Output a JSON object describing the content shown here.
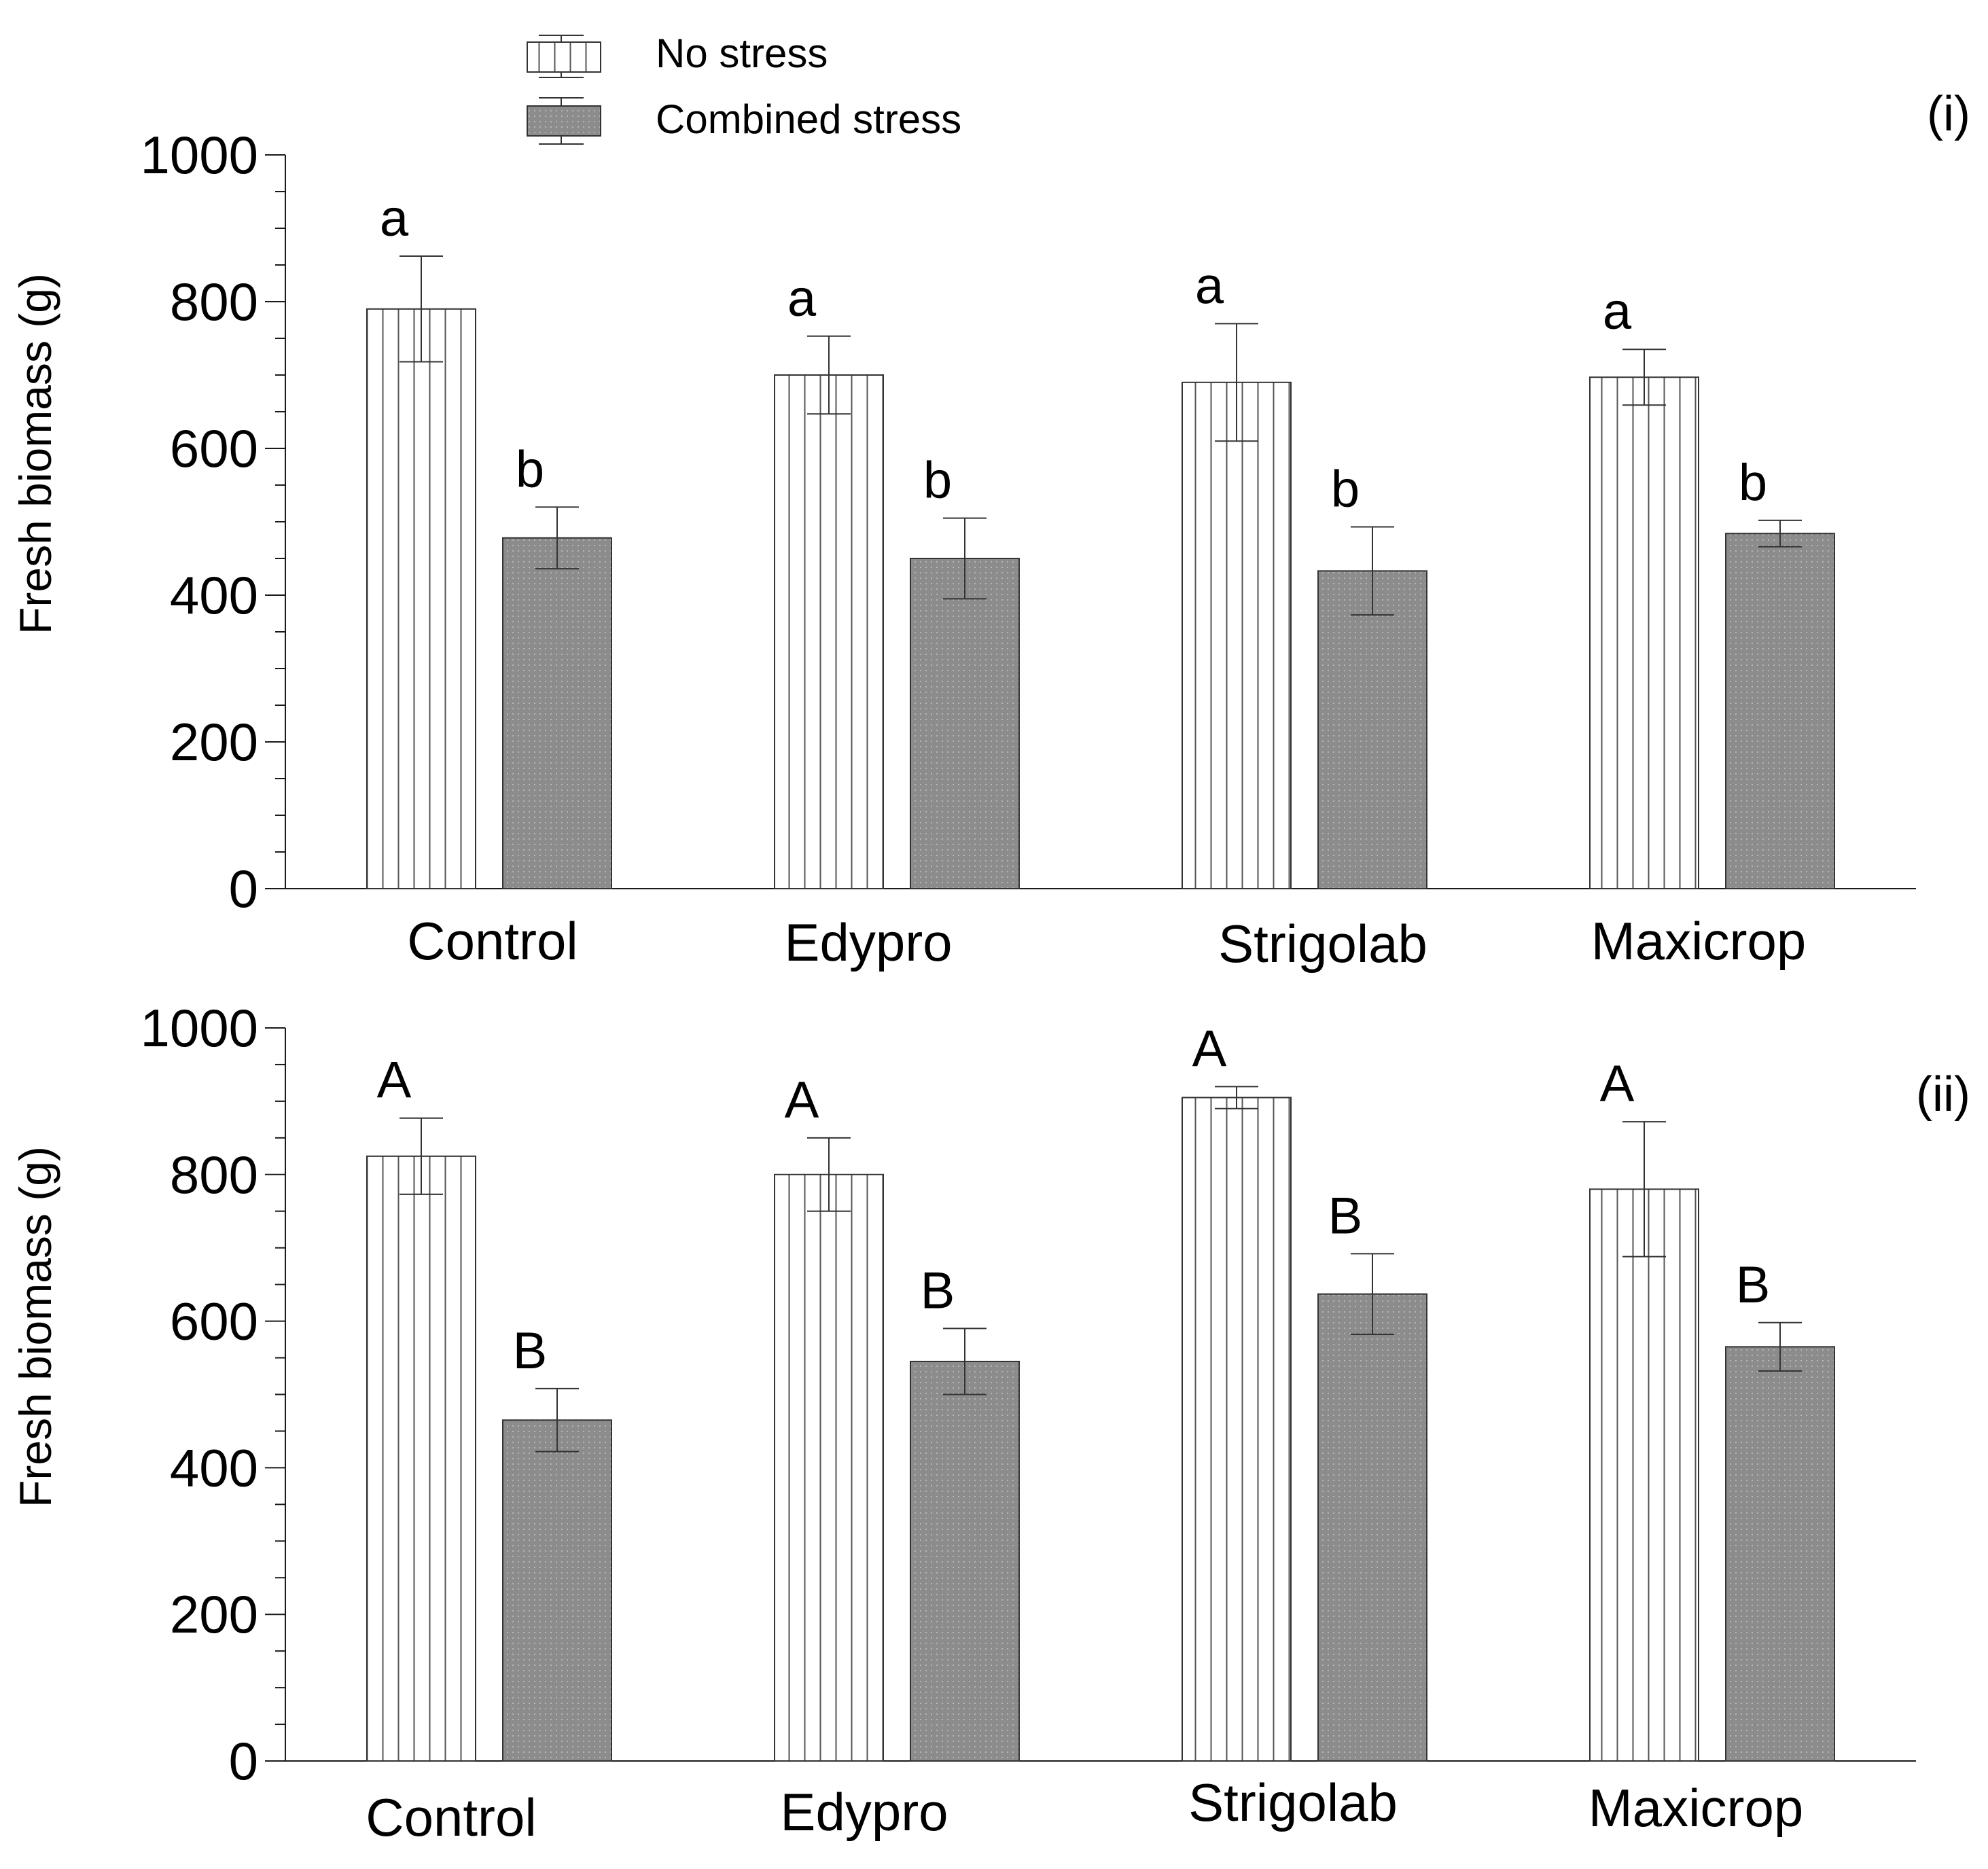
{
  "legend": {
    "items": [
      {
        "label": "No stress",
        "pattern": "vertical-stripes"
      },
      {
        "label": "Combined stress",
        "pattern": "dark-dotted"
      }
    ]
  },
  "colors": {
    "axis": "#1a1a1a",
    "no_stress_fill": "#ffffff",
    "no_stress_stripe": "#555555",
    "combined_fill": "#8c8c8c",
    "combined_dot": "#b5b5b5"
  },
  "chart_data": [
    {
      "type": "bar",
      "panel_label": "(i)",
      "categories": [
        "Control",
        "Edypro",
        "Strigolab",
        "Maxicrop"
      ],
      "ylabel": "Fresh biomass (g)",
      "xlabel": "",
      "ylim": [
        0,
        1000
      ],
      "yticks": [
        0,
        200,
        400,
        600,
        800,
        1000
      ],
      "series": [
        {
          "name": "No stress",
          "values": [
            790,
            700,
            690,
            697
          ],
          "errors": [
            72,
            53,
            80,
            38
          ],
          "letters": [
            "a",
            "a",
            "a",
            "a"
          ]
        },
        {
          "name": "Combined stress",
          "values": [
            478,
            450,
            433,
            484
          ],
          "errors": [
            42,
            55,
            60,
            18
          ],
          "letters": [
            "b",
            "b",
            "b",
            "b"
          ]
        }
      ]
    },
    {
      "type": "bar",
      "panel_label": "(ii)",
      "categories": [
        "Control",
        "Edypro",
        "Strigolab",
        "Maxicrop"
      ],
      "ylabel": "Fresh biomass (g)",
      "xlabel": "",
      "ylim": [
        0,
        1000
      ],
      "yticks": [
        0,
        200,
        400,
        600,
        800,
        1000
      ],
      "series": [
        {
          "name": "No stress",
          "values": [
            825,
            800,
            905,
            780
          ],
          "errors": [
            52,
            50,
            15,
            92
          ],
          "letters": [
            "A",
            "A",
            "A",
            "A"
          ]
        },
        {
          "name": "Combined stress",
          "values": [
            465,
            545,
            637,
            565
          ],
          "errors": [
            43,
            45,
            55,
            33
          ],
          "letters": [
            "B",
            "B",
            "B",
            "B"
          ]
        }
      ]
    }
  ]
}
